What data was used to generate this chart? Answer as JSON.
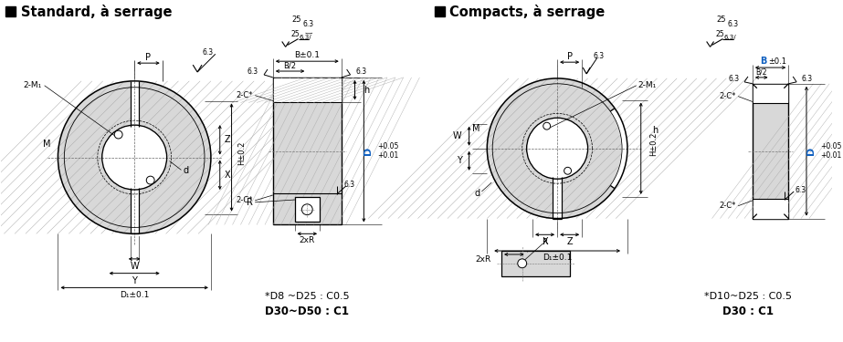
{
  "title_left": "Standard, à serrage",
  "title_right": "Compacts, à serrage",
  "note_left_1": "*D8 ~D25 : C0.5",
  "note_left_2": "D30~D50 : C1",
  "note_right_1": "*D10~D25 : C0.5",
  "note_right_2": "D30 : C1",
  "bg_color": "#ffffff",
  "line_color": "#000000",
  "blue_color": "#1060C0",
  "gray_color": "#888888",
  "shade_color": "#d8d8d8",
  "shade_dark": "#b8b8b8"
}
